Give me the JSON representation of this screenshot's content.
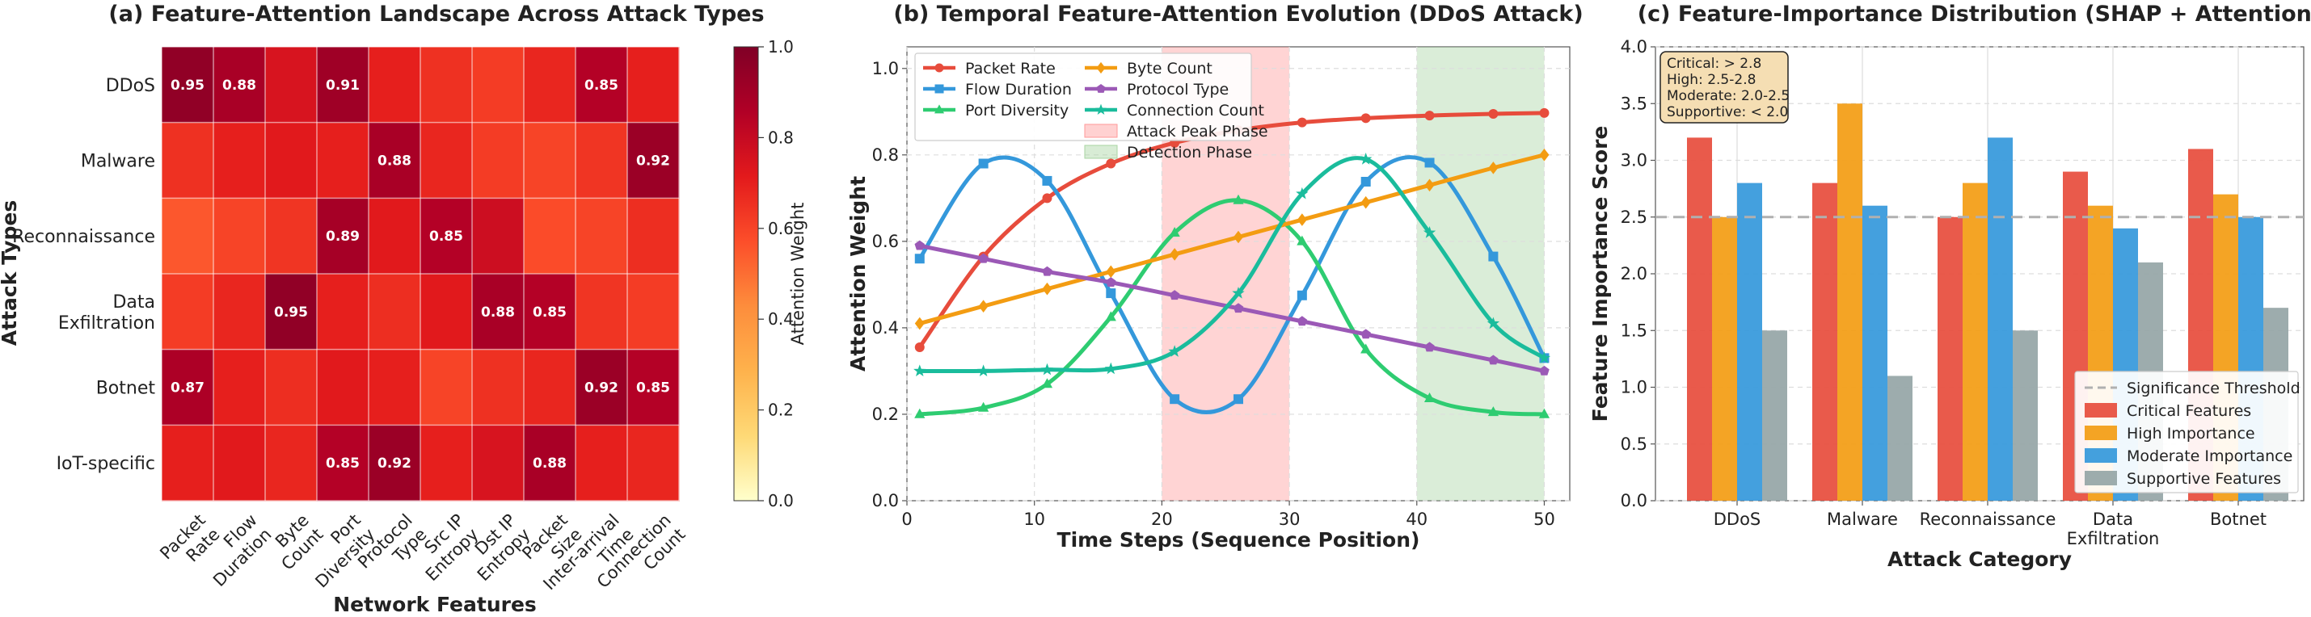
{
  "chart_data": [
    {
      "type": "heatmap",
      "title": "(a) Feature-Attention Landscape Across Attack Types",
      "xlabel": "Network Features",
      "ylabel": "Attack Types",
      "colorbar": {
        "label": "Attention Weight",
        "range": [
          0,
          1
        ],
        "ticks": [
          "0.0",
          "0.2",
          "0.4",
          "0.6",
          "0.8",
          "1.0"
        ],
        "colors": [
          "#ffffcc",
          "#fed976",
          "#feb24c",
          "#fd8d3c",
          "#fc4e2a",
          "#e31a1c",
          "#b10026",
          "#800026"
        ]
      },
      "rows": [
        {
          "label": [
            "DDoS"
          ]
        },
        {
          "label": [
            "Malware"
          ]
        },
        {
          "label": [
            "Reconnaissance"
          ]
        },
        {
          "label": [
            "Data",
            "Exfiltration"
          ]
        },
        {
          "label": [
            "Botnet"
          ]
        },
        {
          "label": [
            "IoT-specific"
          ]
        }
      ],
      "columns": [
        {
          "label": [
            "Packet",
            "Rate"
          ]
        },
        {
          "label": [
            "Flow",
            "Duration"
          ]
        },
        {
          "label": [
            "Byte",
            "Count"
          ]
        },
        {
          "label": [
            "Port",
            "Diversity"
          ]
        },
        {
          "label": [
            "Protocol",
            "Type"
          ]
        },
        {
          "label": [
            "Src IP",
            "Entropy"
          ]
        },
        {
          "label": [
            "Dst IP",
            "Entropy"
          ]
        },
        {
          "label": [
            "Packet",
            "Size"
          ]
        },
        {
          "label": [
            "Inter-arrival",
            "Time"
          ]
        },
        {
          "label": [
            "Connection",
            "Count"
          ]
        }
      ],
      "values": [
        [
          0.95,
          0.88,
          0.75,
          0.91,
          0.7,
          0.65,
          0.62,
          0.68,
          0.85,
          0.7
        ],
        [
          0.65,
          0.7,
          0.72,
          0.7,
          0.88,
          0.68,
          0.62,
          0.6,
          0.64,
          0.92
        ],
        [
          0.55,
          0.6,
          0.64,
          0.89,
          0.72,
          0.85,
          0.78,
          0.58,
          0.6,
          0.66
        ],
        [
          0.62,
          0.68,
          0.95,
          0.7,
          0.66,
          0.72,
          0.88,
          0.85,
          0.64,
          0.62
        ],
        [
          0.87,
          0.7,
          0.66,
          0.72,
          0.7,
          0.6,
          0.65,
          0.68,
          0.92,
          0.85
        ],
        [
          0.7,
          0.72,
          0.68,
          0.85,
          0.92,
          0.7,
          0.75,
          0.88,
          0.7,
          0.68
        ]
      ],
      "annotations": [
        {
          "row": 0,
          "col": 0,
          "text": "0.95"
        },
        {
          "row": 0,
          "col": 1,
          "text": "0.88"
        },
        {
          "row": 0,
          "col": 3,
          "text": "0.91"
        },
        {
          "row": 0,
          "col": 8,
          "text": "0.85"
        },
        {
          "row": 1,
          "col": 4,
          "text": "0.88"
        },
        {
          "row": 1,
          "col": 9,
          "text": "0.92"
        },
        {
          "row": 2,
          "col": 3,
          "text": "0.89"
        },
        {
          "row": 2,
          "col": 5,
          "text": "0.85"
        },
        {
          "row": 3,
          "col": 2,
          "text": "0.95"
        },
        {
          "row": 3,
          "col": 6,
          "text": "0.88"
        },
        {
          "row": 3,
          "col": 7,
          "text": "0.85"
        },
        {
          "row": 4,
          "col": 0,
          "text": "0.87"
        },
        {
          "row": 4,
          "col": 8,
          "text": "0.92"
        },
        {
          "row": 4,
          "col": 9,
          "text": "0.85"
        },
        {
          "row": 5,
          "col": 3,
          "text": "0.85"
        },
        {
          "row": 5,
          "col": 4,
          "text": "0.92"
        },
        {
          "row": 5,
          "col": 7,
          "text": "0.88"
        }
      ]
    },
    {
      "type": "line",
      "title": "(b) Temporal Feature-Attention Evolution (DDoS Attack)",
      "xlabel": "Time Steps (Sequence Position)",
      "ylabel": "Attention Weight",
      "xlim": [
        0,
        52
      ],
      "ylim": [
        0,
        1.05
      ],
      "xticks": [
        "0",
        "10",
        "20",
        "30",
        "40",
        "50"
      ],
      "yticks": [
        "0.0",
        "0.2",
        "0.4",
        "0.6",
        "0.8",
        "1.0"
      ],
      "x": [
        1,
        6,
        11,
        16,
        21,
        26,
        31,
        36,
        41,
        46,
        50
      ],
      "legend_position": "top-left",
      "series": [
        {
          "name": "Packet Rate",
          "color": "#e74c3c",
          "marker": "circle",
          "values": [
            0.355,
            0.565,
            0.7,
            0.78,
            0.828,
            0.857,
            0.875,
            0.885,
            0.891,
            0.895,
            0.897
          ]
        },
        {
          "name": "Flow Duration",
          "color": "#3498db",
          "marker": "square",
          "values": [
            0.56,
            0.78,
            0.74,
            0.48,
            0.235,
            0.235,
            0.475,
            0.738,
            0.782,
            0.565,
            0.33
          ]
        },
        {
          "name": "Port Diversity",
          "color": "#2ecc71",
          "marker": "triangle",
          "values": [
            0.2,
            0.215,
            0.27,
            0.425,
            0.62,
            0.695,
            0.6,
            0.35,
            0.237,
            0.205,
            0.2
          ]
        },
        {
          "name": "Byte Count",
          "color": "#f39c12",
          "marker": "diamond",
          "values": [
            0.41,
            0.45,
            0.49,
            0.53,
            0.57,
            0.61,
            0.65,
            0.69,
            0.73,
            0.77,
            0.8
          ]
        },
        {
          "name": "Protocol Type",
          "color": "#9b59b6",
          "marker": "pentagon",
          "values": [
            0.59,
            0.56,
            0.53,
            0.505,
            0.475,
            0.445,
            0.415,
            0.385,
            0.355,
            0.325,
            0.3
          ]
        },
        {
          "name": "Connection Count",
          "color": "#1abc9c",
          "marker": "star",
          "values": [
            0.3,
            0.3,
            0.303,
            0.305,
            0.345,
            0.48,
            0.71,
            0.79,
            0.62,
            0.41,
            0.33
          ]
        }
      ],
      "shaded_regions": [
        {
          "name": "Attack Peak Phase",
          "x": [
            20,
            30
          ],
          "color": "#ff9999"
        },
        {
          "name": "Detection Phase",
          "x": [
            40,
            50
          ],
          "color": "#a8d5a2"
        }
      ]
    },
    {
      "type": "bar",
      "title": "(c) Feature-Importance Distribution (SHAP + Attention)",
      "xlabel": "Attack Category",
      "ylabel": "Feature Importance Score",
      "ylim": [
        0,
        4.0
      ],
      "yticks": [
        "0.0",
        "0.5",
        "1.0",
        "1.5",
        "2.0",
        "2.5",
        "3.0",
        "3.5",
        "4.0"
      ],
      "categories": [
        [
          "DDoS"
        ],
        [
          "Malware"
        ],
        [
          "Reconnaissance"
        ],
        [
          "Data",
          "Exfiltration"
        ],
        [
          "Botnet"
        ]
      ],
      "series": [
        {
          "name": "Critical Features",
          "color": "#e74c3c",
          "values": [
            3.2,
            2.8,
            2.5,
            2.9,
            3.1
          ]
        },
        {
          "name": "High Importance",
          "color": "#f39c12",
          "values": [
            2.5,
            3.5,
            2.8,
            2.6,
            2.7
          ]
        },
        {
          "name": "Moderate Importance",
          "color": "#3498db",
          "values": [
            2.8,
            2.6,
            3.2,
            2.4,
            2.5
          ]
        },
        {
          "name": "Supportive Features",
          "color": "#95a5a6",
          "values": [
            1.5,
            1.1,
            1.5,
            2.1,
            1.7
          ]
        }
      ],
      "threshold": {
        "name": "Significance Threshold",
        "value": 2.5
      },
      "info_box": [
        "Critical: > 2.8",
        "High: 2.5-2.8",
        "Moderate: 2.0-2.5",
        "Supportive: < 2.0"
      ],
      "legend_position": "bottom-right"
    }
  ]
}
